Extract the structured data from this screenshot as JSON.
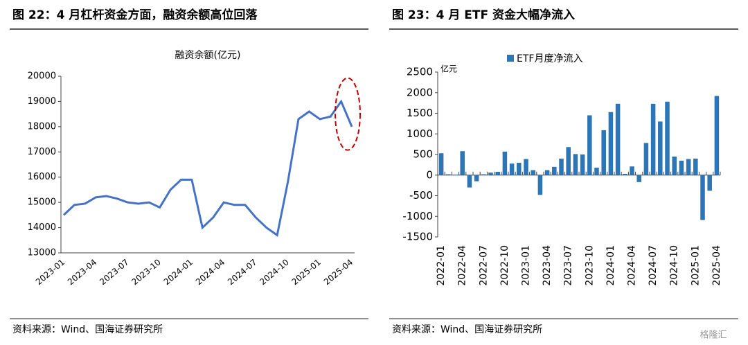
{
  "figures": [
    {
      "heading": "图 22：4 月杠杆资金方面，融资余额高位回落",
      "source": "资料来源：Wind、国海证券研究所"
    },
    {
      "heading": "图 23：4 月 ETF 资金大幅净流入",
      "source": "资料来源：Wind、国海证券研究所"
    }
  ],
  "watermark": "格隆汇",
  "chart_data": [
    {
      "type": "line",
      "title": "融资余额(亿元)",
      "categories": [
        "2023-01",
        null,
        null,
        "2023-04",
        null,
        null,
        "2023-07",
        null,
        null,
        "2023-10",
        null,
        null,
        "2024-01",
        null,
        null,
        "2024-04",
        null,
        null,
        "2024-07",
        null,
        null,
        "2024-10",
        null,
        null,
        "2025-01",
        null,
        null,
        "2025-04"
      ],
      "series": [
        {
          "name": "融资余额",
          "color": "#4472c4",
          "values": [
            14500,
            14900,
            14950,
            15200,
            15250,
            15150,
            15000,
            14950,
            15000,
            14800,
            15500,
            15900,
            15900,
            14000,
            14400,
            15000,
            14900,
            14900,
            14400,
            14000,
            13700,
            15800,
            18300,
            18600,
            18300,
            18400,
            19000,
            18000
          ]
        }
      ],
      "ylim": [
        13000,
        20000
      ],
      "yticks": [
        13000,
        14000,
        15000,
        16000,
        17000,
        18000,
        19000,
        20000
      ],
      "grid": false
    },
    {
      "type": "bar",
      "y_unit": "亿元",
      "categories": [
        "2022-01",
        null,
        null,
        "2022-04",
        null,
        null,
        "2022-07",
        null,
        null,
        "2022-10",
        null,
        null,
        "2023-01",
        null,
        null,
        "2023-04",
        null,
        null,
        "2023-07",
        null,
        null,
        "2023-10",
        null,
        null,
        "2024-01",
        null,
        null,
        "2024-04",
        null,
        null,
        "2024-07",
        null,
        null,
        "2024-10",
        null,
        null,
        "2025-01",
        null,
        null,
        "2025-04"
      ],
      "series": [
        {
          "name": "ETF月度净流入",
          "color": "#2e75b6",
          "values": [
            530,
            20,
            10,
            580,
            -300,
            -150,
            20,
            60,
            80,
            570,
            280,
            300,
            390,
            120,
            -480,
            120,
            200,
            400,
            680,
            510,
            500,
            1450,
            180,
            1090,
            1530,
            1730,
            30,
            210,
            -170,
            780,
            1730,
            1300,
            1780,
            450,
            350,
            390,
            400,
            -1090,
            -380,
            1920
          ]
        }
      ],
      "ylim": [
        -1500,
        2500
      ],
      "yticks": [
        -1500,
        -1000,
        -500,
        0,
        500,
        1000,
        1500,
        2000,
        2500
      ],
      "legend": "top",
      "grid": false
    }
  ]
}
